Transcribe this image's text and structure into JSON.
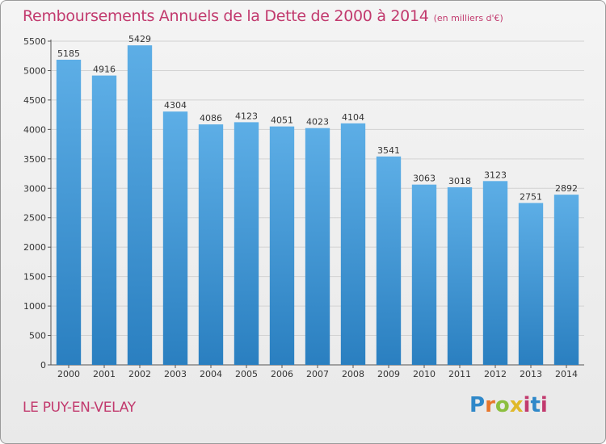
{
  "header": {
    "title": "Remboursements Annuels de la Dette de 2000 à 2014",
    "unit": "(en milliers d'€)"
  },
  "footer": {
    "commune": "LE PUY-EN-VELAY",
    "logo": [
      "P",
      "r",
      "o",
      "x",
      "i",
      "t",
      "i"
    ]
  },
  "colors": {
    "bar_top": "#5daee6",
    "bar_bottom": "#2a7fc0",
    "title": "#c23a6e"
  },
  "chart_data": {
    "type": "bar",
    "title": "Remboursements Annuels de la Dette de 2000 à 2014",
    "subtitle": "(en milliers d'€)",
    "xlabel": "",
    "ylabel": "",
    "categories": [
      "2000",
      "2001",
      "2002",
      "2003",
      "2004",
      "2005",
      "2006",
      "2007",
      "2008",
      "2009",
      "2010",
      "2011",
      "2012",
      "2013",
      "2014"
    ],
    "values": [
      5185,
      4916,
      5429,
      4304,
      4086,
      4123,
      4051,
      4023,
      4104,
      3541,
      3063,
      3018,
      3123,
      2751,
      2892
    ],
    "ylim": [
      0,
      5500
    ],
    "yticks": [
      0,
      500,
      1000,
      1500,
      2000,
      2500,
      3000,
      3500,
      4000,
      4500,
      5000,
      5500
    ],
    "grid": true,
    "legend": "none"
  }
}
